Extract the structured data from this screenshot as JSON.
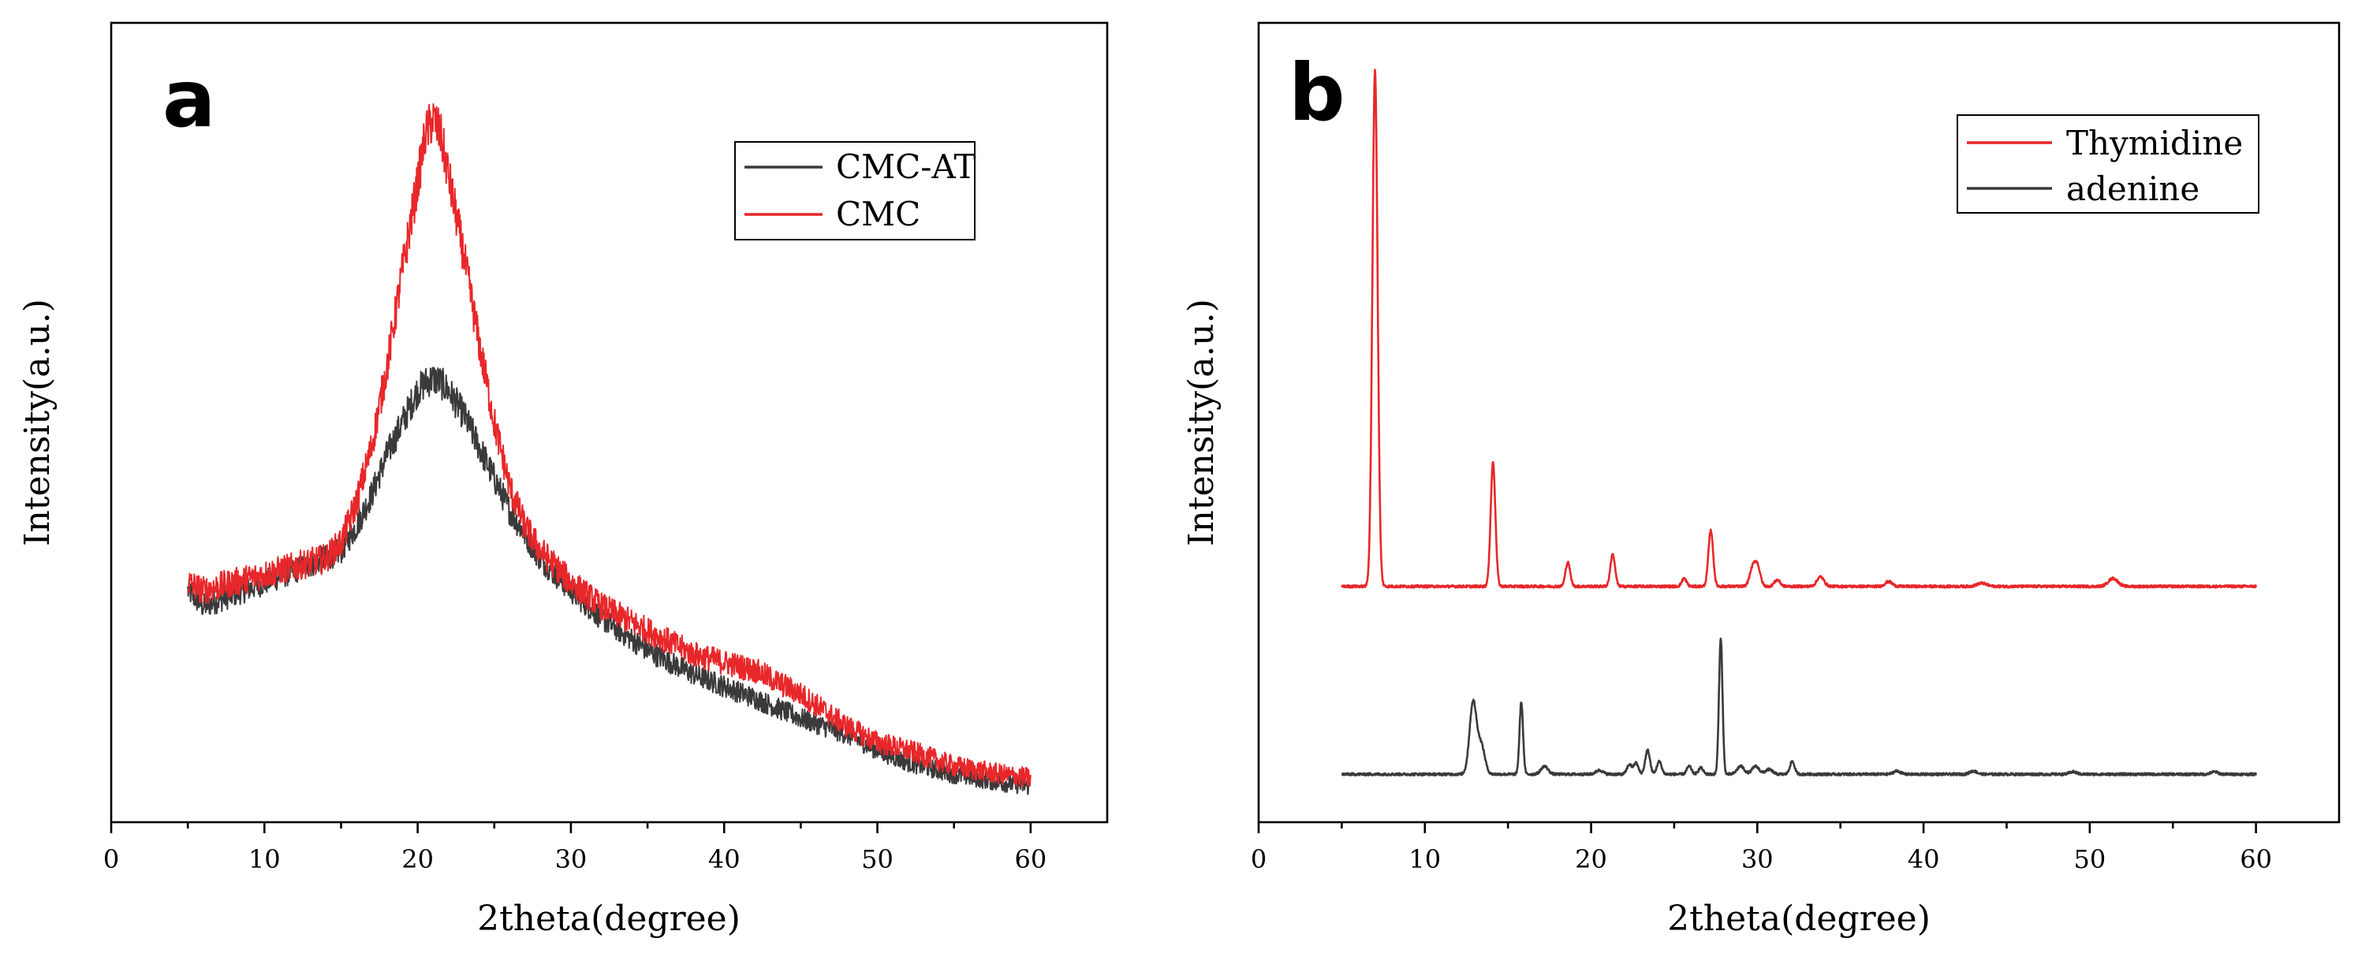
{
  "chart_data": [
    {
      "panel_label": "a",
      "type": "line",
      "xlabel": "2theta(degree)",
      "ylabel": "Intensity(a.u.)",
      "xlim": [
        0,
        65
      ],
      "ylim": [
        0,
        1.0
      ],
      "y_ticks_shown": false,
      "xticks": [
        0,
        10,
        20,
        30,
        40,
        50,
        60
      ],
      "legend": {
        "position": "top-right"
      },
      "series": [
        {
          "name": "CMC-AT",
          "color": "#3a3a3a",
          "x": [
            5,
            6,
            8,
            10,
            12,
            14,
            15,
            16,
            17,
            18,
            19,
            20,
            20.5,
            21,
            21.5,
            22,
            23,
            24,
            25,
            26,
            27,
            28,
            30,
            32,
            35,
            38,
            40,
            42,
            45,
            48,
            50,
            52,
            55,
            58,
            60
          ],
          "y": [
            0.29,
            0.27,
            0.285,
            0.3,
            0.315,
            0.33,
            0.34,
            0.37,
            0.41,
            0.46,
            0.5,
            0.54,
            0.55,
            0.555,
            0.55,
            0.54,
            0.51,
            0.47,
            0.43,
            0.39,
            0.36,
            0.33,
            0.29,
            0.255,
            0.215,
            0.185,
            0.17,
            0.155,
            0.13,
            0.11,
            0.09,
            0.075,
            0.06,
            0.05,
            0.045
          ]
        },
        {
          "name": "CMC",
          "color": "#e8272a",
          "x": [
            5,
            6,
            8,
            10,
            12,
            14,
            15,
            16,
            17,
            18,
            19,
            20,
            20.5,
            21,
            21.5,
            22,
            23,
            24,
            25,
            26,
            27,
            28,
            30,
            32,
            35,
            38,
            40,
            42,
            45,
            48,
            50,
            52,
            55,
            58,
            60
          ],
          "y": [
            0.3,
            0.29,
            0.3,
            0.31,
            0.32,
            0.33,
            0.35,
            0.4,
            0.47,
            0.57,
            0.69,
            0.8,
            0.86,
            0.88,
            0.86,
            0.81,
            0.71,
            0.6,
            0.5,
            0.42,
            0.37,
            0.34,
            0.3,
            0.27,
            0.24,
            0.21,
            0.2,
            0.19,
            0.16,
            0.12,
            0.1,
            0.09,
            0.07,
            0.06,
            0.055
          ]
        }
      ]
    },
    {
      "panel_label": "b",
      "type": "line",
      "xlabel": "2theta(degree)",
      "ylabel": "Intensity(a.u.)",
      "xlim": [
        0,
        65
      ],
      "ylim": [
        0,
        1.0
      ],
      "y_ticks_shown": false,
      "xticks": [
        0,
        10,
        20,
        30,
        40,
        50,
        60
      ],
      "legend": {
        "position": "top-right"
      },
      "series": [
        {
          "name": "Thymidine",
          "color": "#e8272a",
          "baseline": 0.295,
          "x_range": [
            5,
            60
          ],
          "peaks": [
            {
              "x": 7.0,
              "h": 0.645,
              "w": 0.22
            },
            {
              "x": 14.1,
              "h": 0.155,
              "w": 0.2
            },
            {
              "x": 18.6,
              "h": 0.03,
              "w": 0.2
            },
            {
              "x": 21.3,
              "h": 0.04,
              "w": 0.2
            },
            {
              "x": 25.6,
              "h": 0.01,
              "w": 0.2
            },
            {
              "x": 27.2,
              "h": 0.07,
              "w": 0.2
            },
            {
              "x": 29.7,
              "h": 0.02,
              "w": 0.25
            },
            {
              "x": 30.0,
              "h": 0.025,
              "w": 0.25
            },
            {
              "x": 31.2,
              "h": 0.008,
              "w": 0.25
            },
            {
              "x": 33.8,
              "h": 0.012,
              "w": 0.3
            },
            {
              "x": 37.9,
              "h": 0.006,
              "w": 0.3
            },
            {
              "x": 43.5,
              "h": 0.004,
              "w": 0.4
            },
            {
              "x": 51.4,
              "h": 0.01,
              "w": 0.4
            }
          ]
        },
        {
          "name": "adenine",
          "color": "#3a3a3a",
          "baseline": 0.06,
          "x_range": [
            5,
            60
          ],
          "peaks": [
            {
              "x": 12.9,
              "h": 0.09,
              "w": 0.3
            },
            {
              "x": 13.4,
              "h": 0.035,
              "w": 0.3
            },
            {
              "x": 15.8,
              "h": 0.09,
              "w": 0.15
            },
            {
              "x": 17.2,
              "h": 0.01,
              "w": 0.3
            },
            {
              "x": 20.5,
              "h": 0.005,
              "w": 0.3
            },
            {
              "x": 22.3,
              "h": 0.012,
              "w": 0.2
            },
            {
              "x": 22.7,
              "h": 0.014,
              "w": 0.2
            },
            {
              "x": 23.4,
              "h": 0.03,
              "w": 0.2
            },
            {
              "x": 24.1,
              "h": 0.016,
              "w": 0.2
            },
            {
              "x": 25.9,
              "h": 0.01,
              "w": 0.2
            },
            {
              "x": 26.6,
              "h": 0.008,
              "w": 0.2
            },
            {
              "x": 27.8,
              "h": 0.17,
              "w": 0.15
            },
            {
              "x": 29.0,
              "h": 0.01,
              "w": 0.3
            },
            {
              "x": 29.9,
              "h": 0.01,
              "w": 0.3
            },
            {
              "x": 30.7,
              "h": 0.006,
              "w": 0.3
            },
            {
              "x": 32.1,
              "h": 0.016,
              "w": 0.2
            },
            {
              "x": 38.4,
              "h": 0.004,
              "w": 0.3
            },
            {
              "x": 43.0,
              "h": 0.004,
              "w": 0.3
            },
            {
              "x": 49.0,
              "h": 0.003,
              "w": 0.3
            },
            {
              "x": 57.5,
              "h": 0.003,
              "w": 0.3
            }
          ]
        }
      ]
    }
  ]
}
